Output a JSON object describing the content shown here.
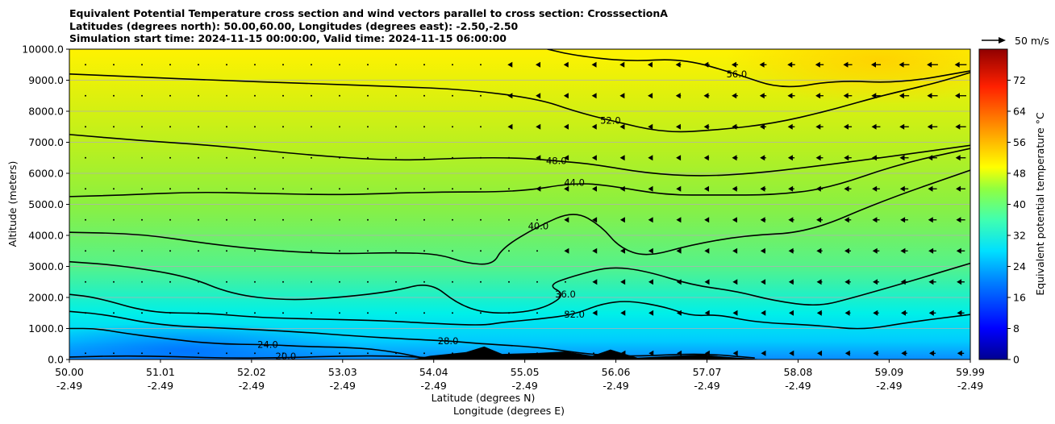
{
  "title_lines": [
    "Equivalent Potential Temperature cross section and wind vectors parallel to cross section: CrosssectionA",
    "Latitudes (degrees north): 50.00,60.00, Longitudes (degrees east): -2.50,-2.50",
    "Simulation start time: 2024-11-15 00:00:00, Valid time: 2024-11-15 06:00:00"
  ],
  "chart_data": {
    "type": "heatmap",
    "title": "Equivalent Potential Temperature cross section and wind vectors parallel to cross section: CrosssectionA",
    "xlabel": "Latitude (degrees N)",
    "xlabel2": "Longitude (degrees E)",
    "ylabel": "Altitude (meters)",
    "xlim": [
      50.0,
      59.99
    ],
    "ylim": [
      0,
      10000
    ],
    "x_ticks": [
      {
        "lat": "50.00",
        "lon": "-2.49",
        "value": 50.0
      },
      {
        "lat": "51.01",
        "lon": "-2.49",
        "value": 51.01
      },
      {
        "lat": "52.02",
        "lon": "-2.49",
        "value": 52.02
      },
      {
        "lat": "53.03",
        "lon": "-2.49",
        "value": 53.03
      },
      {
        "lat": "54.04",
        "lon": "-2.49",
        "value": 54.04
      },
      {
        "lat": "55.05",
        "lon": "-2.49",
        "value": 55.05
      },
      {
        "lat": "56.06",
        "lon": "-2.49",
        "value": 56.06
      },
      {
        "lat": "57.07",
        "lon": "-2.49",
        "value": 57.07
      },
      {
        "lat": "58.08",
        "lon": "-2.49",
        "value": 58.08
      },
      {
        "lat": "59.09",
        "lon": "-2.49",
        "value": 59.09
      },
      {
        "lat": "59.99",
        "lon": "-2.49",
        "value": 59.99
      }
    ],
    "y_ticks": [
      "0.0",
      "1000.0",
      "2000.0",
      "3000.0",
      "4000.0",
      "5000.0",
      "6000.0",
      "7000.0",
      "8000.0",
      "9000.0",
      "10000.0"
    ],
    "grid": "horizontal",
    "colorbar": {
      "label": "Equivalent potential temperature °C",
      "min": 0,
      "max": 80,
      "ticks": [
        "0",
        "8",
        "16",
        "24",
        "32",
        "40",
        "48",
        "56",
        "64",
        "72"
      ]
    },
    "wind_key_label": "50 m/s",
    "contours": [
      {
        "level": "20.0",
        "points": [
          [
            50.0,
            80
          ],
          [
            50.6,
            120
          ],
          [
            51.2,
            90
          ],
          [
            51.8,
            40
          ],
          [
            52.4,
            60
          ],
          [
            53.0,
            110
          ],
          [
            53.6,
            120
          ],
          [
            54.2,
            20
          ]
        ]
      },
      {
        "level": "24.0",
        "points": [
          [
            50.0,
            1000
          ],
          [
            50.3,
            1000
          ],
          [
            50.6,
            850
          ],
          [
            51.0,
            700
          ],
          [
            51.6,
            500
          ],
          [
            52.2,
            480
          ],
          [
            52.6,
            420
          ],
          [
            53.2,
            380
          ],
          [
            53.6,
            250
          ],
          [
            54.0,
            0
          ]
        ]
      },
      {
        "level": "28.0",
        "points": [
          [
            50.0,
            1550
          ],
          [
            50.4,
            1450
          ],
          [
            51.0,
            1100
          ],
          [
            51.8,
            1000
          ],
          [
            52.5,
            900
          ],
          [
            53.2,
            750
          ],
          [
            53.8,
            650
          ],
          [
            54.2,
            600
          ],
          [
            54.6,
            500
          ],
          [
            55.2,
            400
          ],
          [
            55.8,
            150
          ],
          [
            56.3,
            100
          ],
          [
            57.0,
            200
          ],
          [
            57.6,
            50
          ]
        ]
      },
      {
        "level": "32.0",
        "points": [
          [
            50.0,
            2100
          ],
          [
            50.3,
            2000
          ],
          [
            50.9,
            1500
          ],
          [
            51.5,
            1500
          ],
          [
            52.1,
            1350
          ],
          [
            52.8,
            1300
          ],
          [
            53.5,
            1250
          ],
          [
            54.1,
            1150
          ],
          [
            54.6,
            1100
          ],
          [
            54.8,
            1200
          ],
          [
            55.2,
            1300
          ],
          [
            55.6,
            1450
          ],
          [
            55.9,
            1800
          ],
          [
            56.2,
            1900
          ],
          [
            56.6,
            1700
          ],
          [
            56.9,
            1400
          ],
          [
            57.2,
            1450
          ],
          [
            57.6,
            1200
          ],
          [
            58.3,
            1100
          ],
          [
            58.8,
            950
          ],
          [
            59.3,
            1200
          ],
          [
            59.99,
            1450
          ]
        ]
      },
      {
        "level": "36.0",
        "points": [
          [
            50.0,
            3150
          ],
          [
            50.5,
            3050
          ],
          [
            51.3,
            2700
          ],
          [
            51.8,
            2100
          ],
          [
            52.4,
            1900
          ],
          [
            53.0,
            2000
          ],
          [
            53.6,
            2200
          ],
          [
            54.0,
            2500
          ],
          [
            54.3,
            1800
          ],
          [
            54.6,
            1500
          ],
          [
            55.0,
            1500
          ],
          [
            55.3,
            1700
          ],
          [
            55.5,
            2100
          ],
          [
            55.3,
            2400
          ],
          [
            55.6,
            2700
          ],
          [
            56.0,
            3000
          ],
          [
            56.4,
            2850
          ],
          [
            56.9,
            2400
          ],
          [
            57.4,
            2200
          ],
          [
            57.8,
            1900
          ],
          [
            58.3,
            1700
          ],
          [
            58.7,
            2000
          ],
          [
            59.3,
            2500
          ],
          [
            59.99,
            3100
          ]
        ]
      },
      {
        "level": "40.0",
        "points": [
          [
            50.0,
            4100
          ],
          [
            50.8,
            4050
          ],
          [
            51.6,
            3700
          ],
          [
            52.3,
            3500
          ],
          [
            53.0,
            3400
          ],
          [
            53.6,
            3450
          ],
          [
            54.1,
            3400
          ],
          [
            54.4,
            3100
          ],
          [
            54.7,
            3050
          ],
          [
            54.8,
            3600
          ],
          [
            55.2,
            4300
          ],
          [
            55.6,
            4800
          ],
          [
            55.9,
            4300
          ],
          [
            56.1,
            3600
          ],
          [
            56.4,
            3300
          ],
          [
            56.9,
            3700
          ],
          [
            57.5,
            4000
          ],
          [
            58.2,
            4100
          ],
          [
            59.0,
            5100
          ],
          [
            59.99,
            6100
          ]
        ]
      },
      {
        "level": "44.0",
        "points": [
          [
            50.0,
            5250
          ],
          [
            50.6,
            5300
          ],
          [
            51.4,
            5400
          ],
          [
            52.2,
            5350
          ],
          [
            53.0,
            5300
          ],
          [
            54.0,
            5400
          ],
          [
            55.0,
            5400
          ],
          [
            55.6,
            5700
          ],
          [
            56.0,
            5600
          ],
          [
            56.6,
            5300
          ],
          [
            57.2,
            5300
          ],
          [
            57.8,
            5300
          ],
          [
            58.4,
            5500
          ],
          [
            59.2,
            6300
          ],
          [
            59.99,
            6800
          ]
        ]
      },
      {
        "level": "48.0",
        "points": [
          [
            50.0,
            7250
          ],
          [
            50.8,
            7050
          ],
          [
            51.6,
            6900
          ],
          [
            52.6,
            6600
          ],
          [
            53.6,
            6400
          ],
          [
            54.4,
            6500
          ],
          [
            55.0,
            6500
          ],
          [
            55.4,
            6400
          ],
          [
            55.8,
            6300
          ],
          [
            56.4,
            6000
          ],
          [
            57.0,
            5900
          ],
          [
            57.6,
            6000
          ],
          [
            58.2,
            6200
          ],
          [
            59.0,
            6500
          ],
          [
            59.99,
            6900
          ]
        ]
      },
      {
        "level": "52.0",
        "points": [
          [
            50.0,
            9200
          ],
          [
            50.8,
            9100
          ],
          [
            51.6,
            9000
          ],
          [
            52.6,
            8900
          ],
          [
            53.6,
            8800
          ],
          [
            54.4,
            8700
          ],
          [
            55.2,
            8400
          ],
          [
            55.6,
            8000
          ],
          [
            56.0,
            7700
          ],
          [
            56.6,
            7300
          ],
          [
            57.2,
            7400
          ],
          [
            57.8,
            7600
          ],
          [
            58.4,
            8000
          ],
          [
            59.0,
            8500
          ],
          [
            59.6,
            8900
          ],
          [
            59.99,
            9250
          ]
        ]
      },
      {
        "level": "56.0",
        "points": [
          [
            55.3,
            10000
          ],
          [
            55.6,
            9800
          ],
          [
            56.2,
            9600
          ],
          [
            56.8,
            9700
          ],
          [
            57.4,
            9200
          ],
          [
            57.9,
            8700
          ],
          [
            58.5,
            9000
          ],
          [
            59.2,
            8900
          ],
          [
            59.99,
            9300
          ]
        ]
      }
    ],
    "terrain": [
      [
        53.8,
        0
      ],
      [
        54.0,
        120
      ],
      [
        54.2,
        180
      ],
      [
        54.4,
        240
      ],
      [
        54.6,
        420
      ],
      [
        54.8,
        180
      ],
      [
        55.2,
        210
      ],
      [
        55.5,
        260
      ],
      [
        55.8,
        120
      ],
      [
        56.0,
        320
      ],
      [
        56.3,
        60
      ],
      [
        57.0,
        160
      ],
      [
        57.3,
        80
      ],
      [
        57.7,
        0
      ]
    ]
  }
}
